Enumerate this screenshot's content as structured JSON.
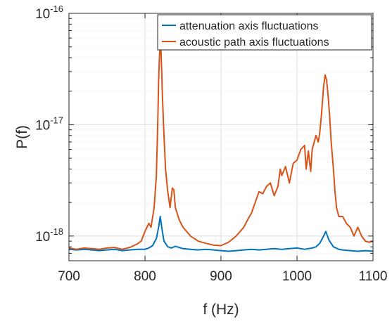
{
  "chart_data": {
    "type": "line",
    "xlabel": "f (Hz)",
    "ylabel": "P(f)",
    "xlim": [
      700,
      1100
    ],
    "ylim": [
      6e-19,
      1e-16
    ],
    "yscale": "log",
    "grid": true,
    "legend_position": "top-right",
    "x_ticks": [
      {
        "value": 700,
        "label": "700"
      },
      {
        "value": 800,
        "label": "800"
      },
      {
        "value": 900,
        "label": "900"
      },
      {
        "value": 1000,
        "label": "1000"
      },
      {
        "value": 1100,
        "label": "1100"
      }
    ],
    "y_ticks": [
      {
        "value": 1e-18,
        "base": "10",
        "exp": "-18"
      },
      {
        "value": 1e-17,
        "base": "10",
        "exp": "-17"
      },
      {
        "value": 1e-16,
        "base": "10",
        "exp": "-16"
      }
    ],
    "series": [
      {
        "name": "attenuation axis fluctuations",
        "color": "#0072BD",
        "points": [
          [
            700,
            7.6e-19
          ],
          [
            710,
            7.5e-19
          ],
          [
            720,
            7.6e-19
          ],
          [
            730,
            7.5e-19
          ],
          [
            740,
            7.4e-19
          ],
          [
            750,
            7.5e-19
          ],
          [
            760,
            7.6e-19
          ],
          [
            770,
            7.4e-19
          ],
          [
            780,
            7.5e-19
          ],
          [
            790,
            7.6e-19
          ],
          [
            800,
            7.6e-19
          ],
          [
            805,
            7.8e-19
          ],
          [
            810,
            8.2e-19
          ],
          [
            815,
            9.5e-19
          ],
          [
            818,
            1.2e-18
          ],
          [
            820,
            1.5e-18
          ],
          [
            822,
            1.2e-18
          ],
          [
            825,
            9e-19
          ],
          [
            830,
            8e-19
          ],
          [
            835,
            7.8e-19
          ],
          [
            840,
            8.1e-19
          ],
          [
            850,
            7.7e-19
          ],
          [
            860,
            7.6e-19
          ],
          [
            870,
            7.5e-19
          ],
          [
            880,
            7.6e-19
          ],
          [
            890,
            7.5e-19
          ],
          [
            900,
            7.4e-19
          ],
          [
            910,
            7.3e-19
          ],
          [
            920,
            7.4e-19
          ],
          [
            930,
            7.5e-19
          ],
          [
            940,
            7.6e-19
          ],
          [
            950,
            7.5e-19
          ],
          [
            960,
            7.6e-19
          ],
          [
            970,
            7.7e-19
          ],
          [
            980,
            7.6e-19
          ],
          [
            990,
            7.7e-19
          ],
          [
            1000,
            7.8e-19
          ],
          [
            1010,
            7.6e-19
          ],
          [
            1020,
            7.8e-19
          ],
          [
            1025,
            8e-19
          ],
          [
            1030,
            8.6e-19
          ],
          [
            1035,
            1e-18
          ],
          [
            1038,
            1.1e-18
          ],
          [
            1042,
            9.2e-19
          ],
          [
            1048,
            8e-19
          ],
          [
            1055,
            7.6e-19
          ],
          [
            1060,
            7.5e-19
          ],
          [
            1070,
            7.4e-19
          ],
          [
            1080,
            7.3e-19
          ],
          [
            1090,
            7.4e-19
          ],
          [
            1100,
            7.3e-19
          ]
        ]
      },
      {
        "name": "acoustic path axis fluctuations",
        "color": "#D95319",
        "points": [
          [
            700,
            7.8e-19
          ],
          [
            710,
            7.6e-19
          ],
          [
            720,
            7.8e-19
          ],
          [
            730,
            7.7e-19
          ],
          [
            740,
            7.6e-19
          ],
          [
            750,
            7.8e-19
          ],
          [
            760,
            7.9e-19
          ],
          [
            770,
            7.6e-19
          ],
          [
            780,
            7.9e-19
          ],
          [
            790,
            8.5e-19
          ],
          [
            795,
            9e-19
          ],
          [
            800,
            1.1e-18
          ],
          [
            805,
            1.3e-18
          ],
          [
            808,
            1.2e-18
          ],
          [
            812,
            1.8e-18
          ],
          [
            815,
            3.5e-18
          ],
          [
            817,
            1.2e-17
          ],
          [
            818,
            2.5e-17
          ],
          [
            819,
            4e-17
          ],
          [
            820,
            5.2e-17
          ],
          [
            821,
            4.6e-17
          ],
          [
            822,
            3e-17
          ],
          [
            823,
            1.8e-17
          ],
          [
            825,
            8e-18
          ],
          [
            827,
            4e-18
          ],
          [
            830,
            2.5e-18
          ],
          [
            833,
            1.8e-18
          ],
          [
            836,
            2.7e-18
          ],
          [
            838,
            2.6e-18
          ],
          [
            840,
            1.8e-18
          ],
          [
            845,
            1.4e-18
          ],
          [
            850,
            1.2e-18
          ],
          [
            860,
            1e-18
          ],
          [
            870,
            9e-19
          ],
          [
            880,
            8.6e-19
          ],
          [
            890,
            8.3e-19
          ],
          [
            900,
            8.2e-19
          ],
          [
            910,
            8.8e-19
          ],
          [
            920,
            1e-18
          ],
          [
            930,
            1.2e-18
          ],
          [
            935,
            1.4e-18
          ],
          [
            940,
            1.6e-18
          ],
          [
            945,
            2e-18
          ],
          [
            950,
            2.5e-18
          ],
          [
            955,
            2.4e-18
          ],
          [
            960,
            2.8e-18
          ],
          [
            965,
            3e-18
          ],
          [
            970,
            2.3e-18
          ],
          [
            975,
            2.8e-18
          ],
          [
            978,
            4e-18
          ],
          [
            980,
            3.5e-18
          ],
          [
            985,
            4.2e-18
          ],
          [
            990,
            3e-18
          ],
          [
            995,
            4.5e-18
          ],
          [
            1000,
            4.8e-18
          ],
          [
            1005,
            6e-18
          ],
          [
            1010,
            6.5e-18
          ],
          [
            1012,
            4e-18
          ],
          [
            1015,
            5.8e-18
          ],
          [
            1018,
            3.8e-18
          ],
          [
            1020,
            6e-18
          ],
          [
            1025,
            8e-18
          ],
          [
            1028,
            7e-18
          ],
          [
            1030,
            8.5e-18
          ],
          [
            1032,
            1.2e-17
          ],
          [
            1035,
            2.2e-17
          ],
          [
            1037,
            2.8e-17
          ],
          [
            1039,
            2.5e-17
          ],
          [
            1041,
            1.8e-17
          ],
          [
            1043,
            1.2e-17
          ],
          [
            1045,
            7e-18
          ],
          [
            1048,
            4e-18
          ],
          [
            1050,
            2.5e-18
          ],
          [
            1052,
            1.8e-18
          ],
          [
            1055,
            1.5e-18
          ],
          [
            1060,
            1.5e-18
          ],
          [
            1065,
            1.3e-18
          ],
          [
            1070,
            1.2e-18
          ],
          [
            1075,
            1e-18
          ],
          [
            1080,
            1.2e-18
          ],
          [
            1085,
            1e-18
          ],
          [
            1090,
            9e-19
          ],
          [
            1095,
            8.8e-19
          ],
          [
            1100,
            9e-19
          ]
        ]
      }
    ]
  }
}
